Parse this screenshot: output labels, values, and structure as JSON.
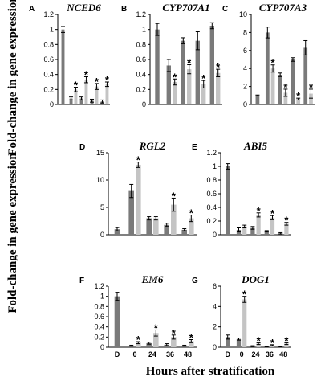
{
  "figure": {
    "ylabel": "Fold-change in gene expression",
    "xlabel": "Hours after stratification",
    "x_categories": [
      "D",
      "0",
      "24",
      "36",
      "48"
    ],
    "colors": {
      "series_dark": "#7a7a7a",
      "series_light": "#c4c4c4"
    }
  },
  "chart_data": [
    {
      "type": "bar",
      "label": "A",
      "title": "NCED6",
      "categories": [
        "D",
        "0",
        "24",
        "36",
        "48"
      ],
      "ylim": [
        0,
        1.2
      ],
      "yticks": [
        0,
        0.2,
        0.4,
        0.6,
        0.8,
        1,
        1.2
      ],
      "series": [
        {
          "values": [
            1.0,
            0.08,
            0.08,
            0.05,
            0.04
          ],
          "errors": [
            0.04,
            0.02,
            0.02,
            0.02,
            0.02
          ]
        },
        {
          "values": [
            null,
            0.2,
            0.33,
            0.24,
            0.27
          ],
          "errors": [
            null,
            0.03,
            0.04,
            0.04,
            0.03
          ],
          "stars": [
            false,
            true,
            true,
            true,
            true
          ]
        }
      ]
    },
    {
      "type": "bar",
      "label": "B",
      "title": "CYP707A1",
      "categories": [
        "D",
        "0",
        "24",
        "36",
        "48"
      ],
      "ylim": [
        0,
        1.2
      ],
      "yticks": [
        0,
        0.2,
        0.4,
        0.6,
        0.8,
        1,
        1.2
      ],
      "series": [
        {
          "values": [
            1.0,
            0.52,
            0.85,
            0.85,
            1.05
          ],
          "errors": [
            0.08,
            0.08,
            0.04,
            0.12,
            0.04
          ]
        },
        {
          "values": [
            null,
            0.3,
            0.47,
            0.27,
            0.42
          ],
          "errors": [
            null,
            0.04,
            0.06,
            0.05,
            0.05
          ],
          "stars": [
            false,
            true,
            true,
            true,
            true
          ]
        }
      ]
    },
    {
      "type": "bar",
      "label": "C",
      "title": "CYP707A3",
      "categories": [
        "D",
        "0",
        "24",
        "36",
        "48"
      ],
      "ylim": [
        0,
        10
      ],
      "yticks": [
        0,
        2,
        4,
        6,
        8,
        10
      ],
      "series": [
        {
          "values": [
            1.0,
            8.0,
            3.3,
            5.0,
            6.3
          ],
          "errors": [
            0.05,
            0.6,
            0.2,
            0.2,
            0.8
          ]
        },
        {
          "values": [
            null,
            4.0,
            1.3,
            0.6,
            1.2
          ],
          "errors": [
            null,
            0.4,
            0.4,
            0.1,
            0.5
          ],
          "stars": [
            false,
            true,
            true,
            true,
            true
          ]
        }
      ]
    },
    {
      "type": "bar",
      "label": "D",
      "title": "RGL2",
      "categories": [
        "D",
        "0",
        "24",
        "36",
        "48"
      ],
      "ylim": [
        0,
        15
      ],
      "yticks": [
        0,
        5,
        10,
        15
      ],
      "series": [
        {
          "values": [
            1.0,
            8.0,
            3.0,
            1.8,
            0.9
          ],
          "errors": [
            0.3,
            1.2,
            0.3,
            0.3,
            0.2
          ]
        },
        {
          "values": [
            null,
            12.8,
            3.0,
            5.5,
            3.0
          ],
          "errors": [
            null,
            0.5,
            0.3,
            1.2,
            0.6
          ],
          "stars": [
            false,
            true,
            false,
            true,
            true
          ]
        }
      ]
    },
    {
      "type": "bar",
      "label": "E",
      "title": "ABI5",
      "categories": [
        "D",
        "0",
        "24",
        "36",
        "48"
      ],
      "ylim": [
        0,
        1.2
      ],
      "yticks": [
        0,
        0.2,
        0.4,
        0.6,
        0.8,
        1,
        1.2
      ],
      "series": [
        {
          "values": [
            1.0,
            0.07,
            0.1,
            0.05,
            0.02
          ],
          "errors": [
            0.04,
            0.03,
            0.02,
            0.01,
            0.01
          ]
        },
        {
          "values": [
            null,
            0.12,
            0.29,
            0.25,
            0.16
          ],
          "errors": [
            null,
            0.02,
            0.03,
            0.03,
            0.02
          ],
          "stars": [
            false,
            false,
            true,
            true,
            true
          ]
        }
      ]
    },
    {
      "type": "bar",
      "label": "F",
      "title": "EM6",
      "categories": [
        "D",
        "0",
        "24",
        "36",
        "48"
      ],
      "ylim": [
        0,
        1.2
      ],
      "yticks": [
        0,
        0.2,
        0.4,
        0.6,
        0.8,
        1,
        1.2
      ],
      "series": [
        {
          "values": [
            1.0,
            0.03,
            0.08,
            0.05,
            0.03
          ],
          "errors": [
            0.08,
            0.01,
            0.02,
            0.02,
            0.01
          ]
        },
        {
          "values": [
            null,
            0.09,
            0.28,
            0.2,
            0.12
          ],
          "errors": [
            null,
            0.02,
            0.06,
            0.04,
            0.03
          ],
          "stars": [
            false,
            true,
            true,
            true,
            true
          ]
        }
      ]
    },
    {
      "type": "bar",
      "label": "G",
      "title": "DOG1",
      "categories": [
        "D",
        "0",
        "24",
        "36",
        "48"
      ],
      "ylim": [
        0,
        6
      ],
      "yticks": [
        0,
        2,
        4,
        6
      ],
      "series": [
        {
          "values": [
            1.0,
            0.8,
            0.1,
            0.05,
            0.05
          ],
          "errors": [
            0.2,
            0.1,
            0.05,
            0.03,
            0.03
          ]
        },
        {
          "values": [
            null,
            4.7,
            0.35,
            0.2,
            0.35
          ],
          "errors": [
            null,
            0.3,
            0.08,
            0.05,
            0.08
          ],
          "stars": [
            false,
            true,
            true,
            true,
            true
          ]
        }
      ]
    }
  ]
}
